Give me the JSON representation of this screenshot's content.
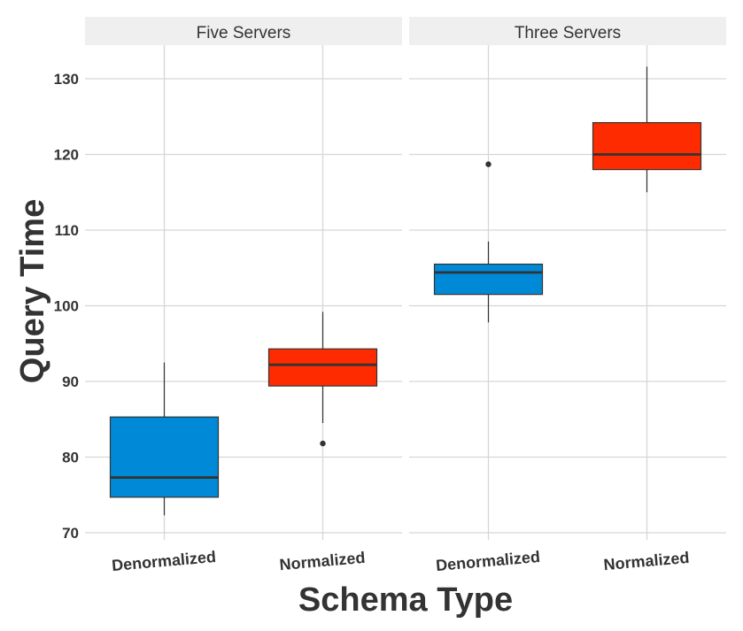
{
  "chart_data": {
    "type": "box",
    "xlabel": "Schema Type",
    "ylabel": "Query Time",
    "ylim": [
      69,
      135
    ],
    "yticks": [
      70,
      80,
      90,
      100,
      110,
      120,
      130
    ],
    "grid": true,
    "colors": {
      "Denormalized": "#0089d6",
      "Normalized": "#ff2b00"
    },
    "categories": [
      "Denormalized",
      "Normalized"
    ],
    "panels": [
      {
        "title": "Five Servers",
        "boxes": [
          {
            "category": "Denormalized",
            "whisker_low": 72.3,
            "q1": 74.7,
            "median": 77.3,
            "q3": 85.3,
            "whisker_high": 92.5,
            "outliers": []
          },
          {
            "category": "Normalized",
            "whisker_low": 84.5,
            "q1": 89.4,
            "median": 92.2,
            "q3": 94.3,
            "whisker_high": 99.2,
            "outliers": [
              81.8
            ]
          }
        ]
      },
      {
        "title": "Three Servers",
        "boxes": [
          {
            "category": "Denormalized",
            "whisker_low": 97.8,
            "q1": 101.5,
            "median": 104.4,
            "q3": 105.5,
            "whisker_high": 108.5,
            "outliers": [
              118.7
            ]
          },
          {
            "category": "Normalized",
            "whisker_low": 115.0,
            "q1": 118.0,
            "median": 120.0,
            "q3": 124.2,
            "whisker_high": 131.6,
            "outliers": []
          }
        ]
      }
    ]
  }
}
